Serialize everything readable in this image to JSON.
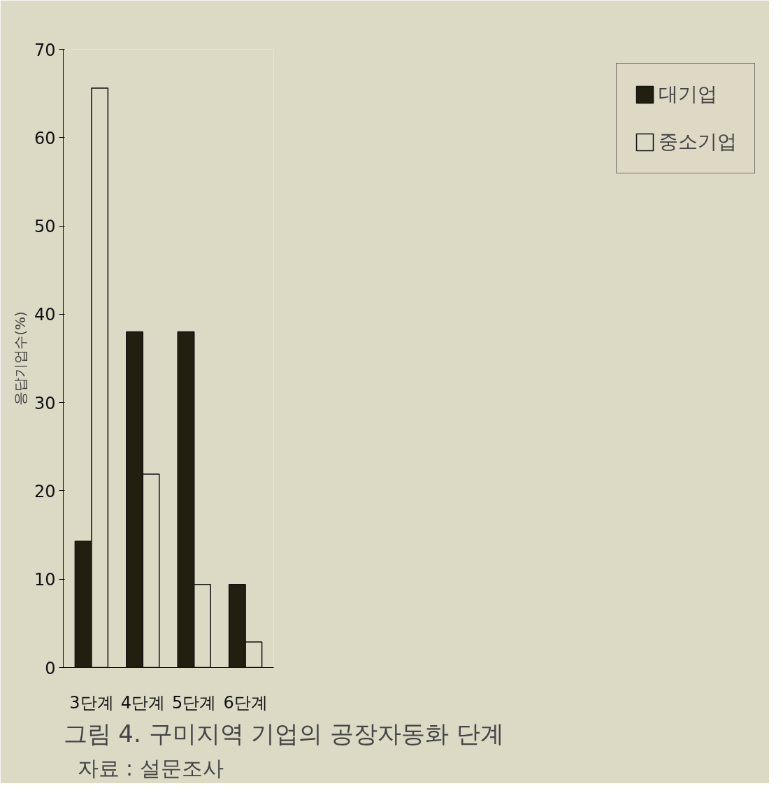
{
  "chart_data": {
    "type": "bar",
    "title": "그림 4. 구미지역 기업의 공장자동화 단계",
    "ylabel": "응답기업수(%)",
    "annotations": [
      "자료 : 설문조사"
    ],
    "categories": [
      "3단계",
      "4단계",
      "5단계",
      "6단계"
    ],
    "series": [
      {
        "name": "대기업",
        "color": "#221f10",
        "values": [
          14.3,
          38.0,
          38.0,
          9.4
        ]
      },
      {
        "name": "중소기업",
        "color": "#dcd9c5",
        "values": [
          65.6,
          21.9,
          9.4,
          2.9
        ]
      }
    ],
    "ylim": [
      0,
      70
    ],
    "yticks": [
      0,
      10,
      20,
      30,
      40,
      50,
      60,
      70
    ],
    "grid": false,
    "legend": "right"
  }
}
